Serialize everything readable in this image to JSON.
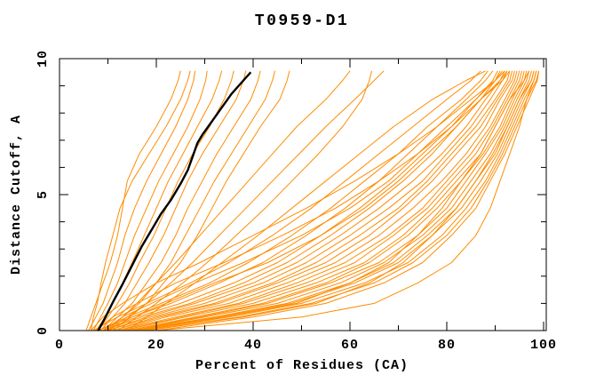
{
  "page": {
    "background": "#ffffff"
  },
  "chart_data": {
    "type": "line",
    "title": "T0959-D1",
    "xlabel": "Percent of Residues (CA)",
    "ylabel": "Distance Cutoff, A",
    "xlim": [
      0,
      100.5
    ],
    "ylim": [
      0,
      10
    ],
    "grid": false,
    "legend": "none",
    "frame": "box-with-inward-ticks",
    "x_major_ticks": [
      0,
      20,
      40,
      60,
      80,
      100
    ],
    "x_tick_labels": [
      "0",
      "20",
      "40",
      "60",
      "80",
      "100"
    ],
    "x_minor_ticks": [
      10,
      30,
      50,
      70,
      90
    ],
    "y_major_ticks": [
      0,
      5,
      10
    ],
    "y_tick_labels": [
      "0",
      "5",
      "10"
    ],
    "y_minor_ticks": [
      1,
      2,
      3,
      4,
      6,
      7,
      8,
      9
    ],
    "colors": {
      "model": "#ff8c00",
      "highlight": "#000000",
      "axis": "#000000"
    },
    "model_series_y": [
      0,
      0.5,
      1,
      1.75,
      2.5,
      3.5,
      4.5,
      5.5,
      6.5,
      7.5,
      8.5,
      9.2,
      9.55
    ],
    "model_series_x": [
      [
        5.5,
        6.5,
        7.5,
        9,
        10.5,
        12,
        13,
        14,
        16.5,
        20,
        23,
        24.5,
        25
      ],
      [
        6,
        7.5,
        9,
        10.5,
        12,
        13.5,
        15.5,
        18,
        21,
        24,
        26.5,
        27.7,
        28
      ],
      [
        7,
        8.5,
        10,
        12,
        13.5,
        15.5,
        18,
        20.5,
        23.5,
        26.5,
        29,
        30.2,
        30.5
      ],
      [
        7.5,
        9.5,
        11,
        13,
        15,
        17.5,
        20,
        22.5,
        25.5,
        28.5,
        31.5,
        33,
        33.5
      ],
      [
        8,
        10,
        12,
        14.5,
        16.5,
        19.5,
        22,
        24.5,
        27.5,
        31,
        34,
        35.5,
        36
      ],
      [
        8.5,
        11,
        13.5,
        16,
        18.5,
        21.5,
        24,
        26.5,
        29.5,
        33,
        36.5,
        38,
        38.5
      ],
      [
        9,
        12,
        15,
        18,
        21,
        24,
        26.5,
        29.5,
        32.5,
        36,
        39.5,
        41,
        41.5
      ],
      [
        9.5,
        13,
        16.5,
        20,
        23,
        26,
        29,
        32,
        35.5,
        39,
        42.5,
        44,
        44.5
      ],
      [
        10,
        14,
        18,
        21.5,
        25,
        28.5,
        31.5,
        34.5,
        38,
        41.5,
        45.5,
        47,
        47.5
      ],
      [
        6.5,
        7,
        7.8,
        8.6,
        9.5,
        11,
        12.5,
        15,
        18.5,
        22,
        25,
        26.5,
        27
      ],
      [
        10,
        13,
        16,
        20,
        24,
        29,
        34,
        39,
        44,
        49,
        55,
        58.5,
        60
      ],
      [
        11,
        14.5,
        18,
        23,
        27.5,
        33,
        38.5,
        44,
        49.5,
        55,
        61,
        65,
        67
      ],
      [
        12,
        16,
        20,
        25.5,
        30.5,
        36.5,
        42.5,
        48,
        53.5,
        58.5,
        62.5,
        64,
        64.5
      ],
      [
        14,
        18,
        22,
        28,
        33.5,
        41,
        48,
        55,
        62,
        69,
        77,
        84,
        88
      ],
      [
        7,
        12,
        18,
        27,
        35,
        44,
        52,
        59,
        66,
        73,
        80,
        85,
        87
      ],
      [
        8,
        14,
        21,
        31,
        39,
        48,
        56,
        63,
        70,
        76,
        83,
        87,
        88.5
      ],
      [
        8,
        15,
        23,
        33,
        42,
        51,
        59,
        66,
        72,
        78,
        84,
        88,
        89.5
      ],
      [
        9,
        16,
        25,
        36,
        45,
        54,
        62,
        69,
        75,
        81,
        86,
        89.5,
        90.5
      ],
      [
        9,
        17,
        27,
        38,
        47,
        56,
        64,
        71,
        77,
        82,
        87,
        90,
        91
      ],
      [
        10,
        18,
        28,
        40,
        49,
        58,
        66,
        73,
        79,
        84,
        88,
        91,
        92
      ],
      [
        10,
        19,
        30,
        42,
        51,
        60,
        68,
        75,
        80,
        85,
        89,
        91.5,
        92.5
      ],
      [
        11,
        20,
        32,
        44,
        53,
        62,
        70,
        76,
        81,
        86,
        90,
        92.5,
        93
      ],
      [
        11,
        21,
        33,
        45,
        55,
        64,
        71,
        77,
        82,
        87,
        90.5,
        93,
        93.5
      ],
      [
        12,
        22,
        35,
        47,
        57,
        66,
        73,
        79,
        84,
        88,
        91,
        93.5,
        94
      ],
      [
        12,
        24,
        37,
        49,
        59,
        68,
        75,
        80,
        85,
        89,
        92,
        94,
        94.5
      ],
      [
        13,
        25,
        38,
        51,
        61,
        69,
        76,
        81,
        86,
        89.5,
        92.5,
        94.5,
        95
      ],
      [
        13,
        26,
        40,
        53,
        63,
        71,
        77,
        82,
        87,
        90,
        93,
        95,
        95.5
      ],
      [
        14,
        28,
        42,
        55,
        64,
        72,
        78,
        83,
        87.5,
        91,
        93.5,
        95.5,
        96
      ],
      [
        14,
        29,
        43,
        56,
        66,
        74,
        80,
        84,
        88,
        91.5,
        94,
        96,
        96.5
      ],
      [
        15,
        30,
        45,
        58,
        67,
        75,
        81,
        85,
        89,
        92,
        94.5,
        96.5,
        97
      ],
      [
        15,
        32,
        47,
        60,
        69,
        76,
        82,
        86,
        90,
        92.5,
        95,
        97,
        97.5
      ],
      [
        16,
        33,
        48,
        61,
        70,
        77,
        83,
        87,
        90.5,
        93,
        95.5,
        97.5,
        98
      ],
      [
        17,
        35,
        50,
        63,
        72,
        79,
        84,
        88,
        91,
        93.5,
        96,
        98,
        98.5
      ],
      [
        18,
        37,
        52,
        65,
        73,
        80,
        85,
        88.5,
        91.5,
        94,
        96.5,
        98.5,
        99
      ],
      [
        20,
        40,
        55,
        67,
        75,
        81,
        86,
        89,
        92,
        94.5,
        97,
        98.7,
        99
      ],
      [
        9,
        13,
        19,
        28,
        38,
        50,
        60,
        68,
        74,
        80,
        86,
        90,
        91.5
      ],
      [
        10,
        15,
        22,
        32,
        43,
        54,
        63,
        70,
        76,
        82,
        87,
        91,
        92.5
      ],
      [
        6.5,
        9,
        13,
        20,
        29,
        40,
        51,
        61,
        70,
        78,
        85,
        90,
        92
      ],
      [
        7.5,
        11,
        16,
        24,
        34,
        46,
        57,
        66,
        74,
        81,
        87,
        91.5,
        93
      ],
      [
        16,
        34,
        49,
        60,
        68,
        74,
        79,
        83,
        87,
        90,
        93,
        96,
        97
      ],
      [
        18,
        38,
        53,
        64,
        71,
        77,
        82,
        86,
        89.5,
        92.5,
        95,
        97.5,
        98
      ],
      [
        20,
        50,
        65,
        74,
        81,
        86,
        89,
        91,
        93,
        95,
        96.5,
        98,
        98.5
      ]
    ],
    "highlight_series": {
      "name": "highlighted-model",
      "points": [
        [
          8,
          0
        ],
        [
          9.5,
          0.5
        ],
        [
          11.2,
          1.1
        ],
        [
          13,
          1.7
        ],
        [
          15,
          2.4
        ],
        [
          17,
          3.1
        ],
        [
          19,
          3.7
        ],
        [
          21,
          4.3
        ],
        [
          23,
          4.8
        ],
        [
          25,
          5.4
        ],
        [
          26.5,
          5.9
        ],
        [
          27.5,
          6.4
        ],
        [
          28.5,
          6.9
        ],
        [
          29.5,
          7.2
        ],
        [
          31.5,
          7.7
        ],
        [
          33.5,
          8.2
        ],
        [
          35.5,
          8.7
        ],
        [
          37.5,
          9.1
        ],
        [
          39.5,
          9.5
        ]
      ]
    }
  }
}
